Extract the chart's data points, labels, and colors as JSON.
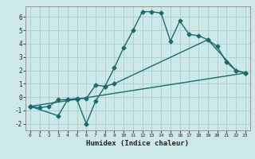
{
  "xlabel": "Humidex (Indice chaleur)",
  "ylabel": "",
  "bg_color": "#cce8e8",
  "line_color": "#1a6b6b",
  "grid_color": "#b0d0d0",
  "xlim": [
    -0.5,
    23.5
  ],
  "ylim": [
    -2.5,
    6.8
  ],
  "xticks": [
    0,
    1,
    2,
    3,
    4,
    5,
    6,
    7,
    8,
    9,
    10,
    11,
    12,
    13,
    14,
    15,
    16,
    17,
    18,
    19,
    20,
    21,
    22,
    23
  ],
  "yticks": [
    -2,
    -1,
    0,
    1,
    2,
    3,
    4,
    5,
    6
  ],
  "series1_x": [
    0,
    1,
    2,
    3,
    4,
    5,
    6,
    7,
    8,
    9,
    10,
    11,
    12,
    13,
    14,
    15,
    16,
    17,
    18,
    19,
    20,
    21,
    22,
    23
  ],
  "series1_y": [
    -0.7,
    -0.8,
    -0.7,
    -0.2,
    -0.2,
    -0.1,
    -0.1,
    0.9,
    0.8,
    2.2,
    3.7,
    5.0,
    6.4,
    6.4,
    6.3,
    4.2,
    5.7,
    4.7,
    4.6,
    4.3,
    3.8,
    2.6,
    2.0,
    1.8
  ],
  "series2_x": [
    0,
    3,
    4,
    5,
    6,
    7,
    8,
    9,
    19,
    22,
    23
  ],
  "series2_y": [
    -0.7,
    -1.4,
    -0.2,
    -0.2,
    -2.0,
    -0.3,
    0.8,
    1.0,
    4.3,
    2.0,
    1.8
  ],
  "series3_x": [
    0,
    23
  ],
  "series3_y": [
    -0.7,
    1.8
  ],
  "marker": "D",
  "marker_size": 2.5,
  "line_width": 1.0
}
